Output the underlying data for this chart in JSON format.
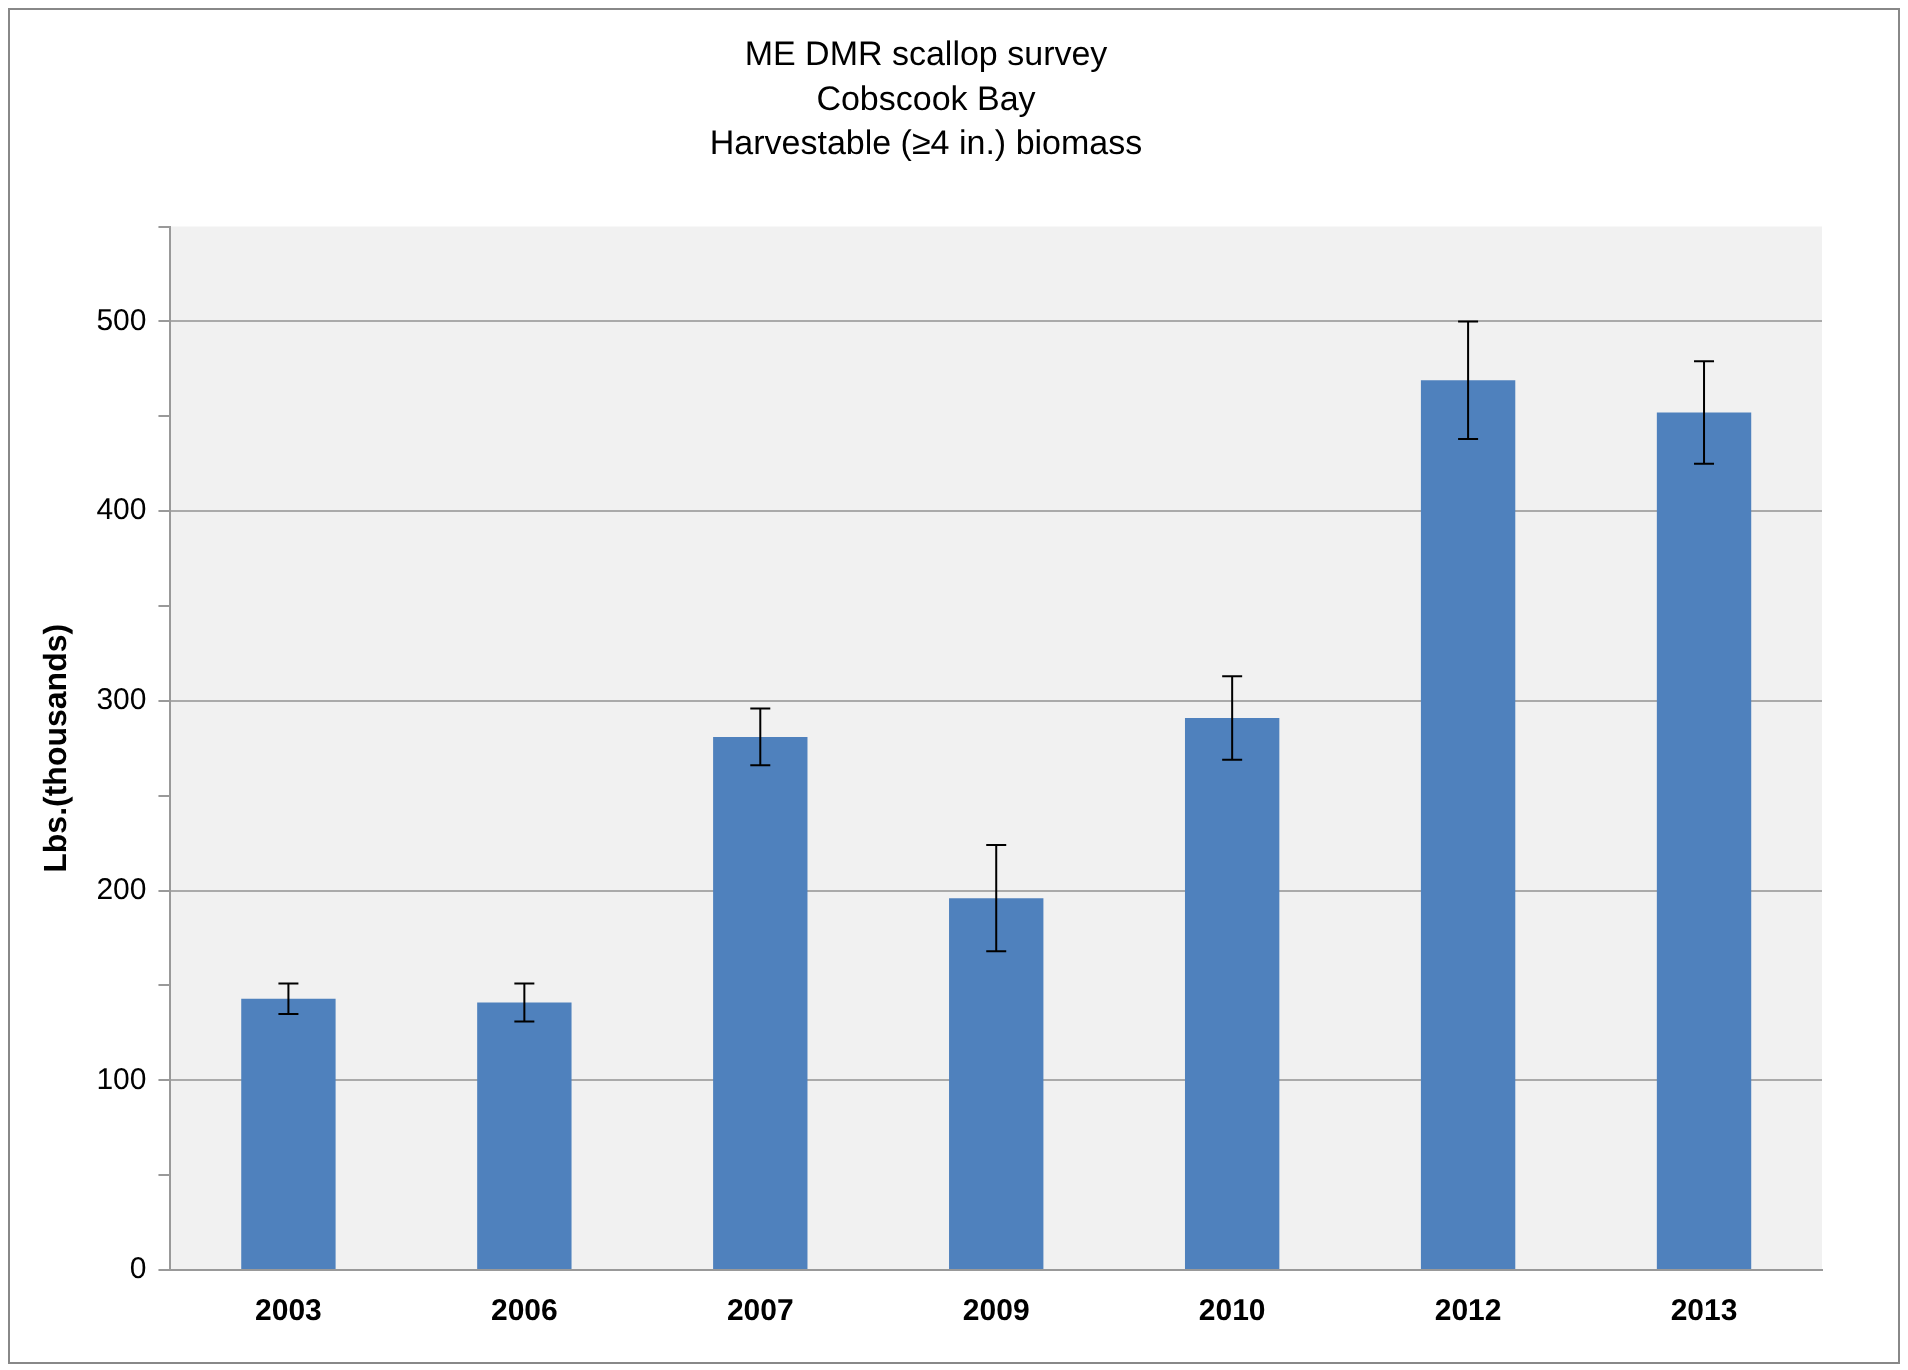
{
  "chart_data": {
    "type": "bar",
    "title": "ME DMR scallop survey\nCobscook Bay\nHarvestable (≥4 in.) biomass",
    "ylabel": "Lbs.(thousands)",
    "categories": [
      "2003",
      "2006",
      "2007",
      "2009",
      "2010",
      "2012",
      "2013"
    ],
    "values": [
      143,
      141,
      281,
      196,
      291,
      469,
      452
    ],
    "errors": [
      8,
      10,
      15,
      28,
      22,
      31,
      27
    ],
    "color": "#4f81bd",
    "ylim": [
      0,
      550
    ],
    "yticks": [
      0,
      {
        "value": 50,
        "label": null
      },
      100,
      {
        "value": 150,
        "label": null
      },
      200,
      {
        "value": 250,
        "label": null
      },
      300,
      {
        "value": 350,
        "label": null
      },
      400,
      {
        "value": 450,
        "label": null
      },
      500,
      {
        "value": 550,
        "label": null
      }
    ],
    "grid": "y",
    "legend": false
  }
}
